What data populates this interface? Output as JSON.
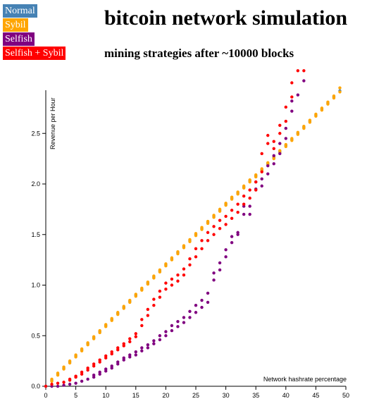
{
  "legend": [
    {
      "label": "Normal",
      "color": "#4682b4"
    },
    {
      "label": "Sybil",
      "color": "#ffa500"
    },
    {
      "label": "Selfish",
      "color": "#800080"
    },
    {
      "label": "Selfish + Sybil",
      "color": "#ff0000"
    }
  ],
  "title": "bitcoin network simulation",
  "subtitle": "mining strategies after ~10000 blocks",
  "chart_data": {
    "type": "scatter",
    "title": "bitcoin network simulation",
    "subtitle": "mining strategies after ~10000 blocks",
    "xlabel": "Network hashrate percentage",
    "ylabel": "Revenue per Hour",
    "xlim": [
      0,
      50
    ],
    "ylim": [
      0,
      3.0
    ],
    "xticks": [
      0,
      5,
      10,
      15,
      20,
      25,
      30,
      35,
      40,
      45,
      50
    ],
    "yticks": [
      0.0,
      0.5,
      1.0,
      1.5,
      2.0,
      2.5
    ],
    "ytick_labels": [
      "0.0",
      "0.5",
      "1.0",
      "1.5",
      "2.0",
      "2.5"
    ],
    "grid": false,
    "legend_position": "top-left",
    "series": [
      {
        "name": "Normal",
        "color": "#4682b4",
        "points": [
          [
            1,
            0.06
          ],
          [
            2,
            0.12
          ],
          [
            3,
            0.18
          ],
          [
            4,
            0.24
          ],
          [
            5,
            0.3
          ],
          [
            6,
            0.36
          ],
          [
            7,
            0.42
          ],
          [
            8,
            0.48
          ],
          [
            9,
            0.54
          ],
          [
            10,
            0.6
          ],
          [
            11,
            0.66
          ],
          [
            12,
            0.72
          ],
          [
            13,
            0.78
          ],
          [
            14,
            0.84
          ],
          [
            15,
            0.9
          ],
          [
            16,
            0.96
          ],
          [
            17,
            1.02
          ],
          [
            18,
            1.08
          ],
          [
            19,
            1.14
          ],
          [
            20,
            1.2
          ],
          [
            21,
            1.26
          ],
          [
            22,
            1.32
          ],
          [
            23,
            1.38
          ],
          [
            24,
            1.44
          ],
          [
            25,
            1.5
          ],
          [
            26,
            1.56
          ],
          [
            27,
            1.62
          ],
          [
            28,
            1.68
          ],
          [
            29,
            1.74
          ],
          [
            30,
            1.8
          ],
          [
            31,
            1.86
          ],
          [
            32,
            1.91
          ],
          [
            33,
            1.97
          ],
          [
            34,
            2.03
          ],
          [
            35,
            2.08
          ],
          [
            36,
            2.14
          ],
          [
            37,
            2.2
          ],
          [
            38,
            2.26
          ],
          [
            39,
            2.32
          ],
          [
            40,
            2.38
          ],
          [
            41,
            2.44
          ],
          [
            42,
            2.5
          ],
          [
            43,
            2.56
          ],
          [
            44,
            2.62
          ],
          [
            45,
            2.68
          ],
          [
            46,
            2.74
          ],
          [
            47,
            2.8
          ],
          [
            48,
            2.86
          ],
          [
            49,
            2.92
          ]
        ]
      },
      {
        "name": "Sybil",
        "color": "#ffa500",
        "points": [
          [
            1,
            0.05
          ],
          [
            1,
            0.07
          ],
          [
            2,
            0.11
          ],
          [
            2,
            0.13
          ],
          [
            3,
            0.17
          ],
          [
            3,
            0.19
          ],
          [
            4,
            0.23
          ],
          [
            4,
            0.25
          ],
          [
            5,
            0.29
          ],
          [
            5,
            0.31
          ],
          [
            6,
            0.35
          ],
          [
            6,
            0.37
          ],
          [
            7,
            0.41
          ],
          [
            7,
            0.43
          ],
          [
            8,
            0.47
          ],
          [
            8,
            0.49
          ],
          [
            9,
            0.53
          ],
          [
            9,
            0.55
          ],
          [
            10,
            0.59
          ],
          [
            10,
            0.61
          ],
          [
            11,
            0.65
          ],
          [
            11,
            0.67
          ],
          [
            12,
            0.71
          ],
          [
            12,
            0.73
          ],
          [
            13,
            0.77
          ],
          [
            13,
            0.79
          ],
          [
            14,
            0.83
          ],
          [
            14,
            0.85
          ],
          [
            15,
            0.89
          ],
          [
            15,
            0.91
          ],
          [
            16,
            0.95
          ],
          [
            16,
            0.97
          ],
          [
            17,
            1.01
          ],
          [
            17,
            1.03
          ],
          [
            18,
            1.07
          ],
          [
            18,
            1.09
          ],
          [
            19,
            1.13
          ],
          [
            19,
            1.15
          ],
          [
            20,
            1.19
          ],
          [
            20,
            1.21
          ],
          [
            21,
            1.25
          ],
          [
            21,
            1.27
          ],
          [
            22,
            1.31
          ],
          [
            22,
            1.33
          ],
          [
            23,
            1.37
          ],
          [
            23,
            1.39
          ],
          [
            24,
            1.43
          ],
          [
            24,
            1.45
          ],
          [
            25,
            1.49
          ],
          [
            25,
            1.51
          ],
          [
            26,
            1.55
          ],
          [
            26,
            1.57
          ],
          [
            27,
            1.61
          ],
          [
            27,
            1.63
          ],
          [
            28,
            1.67
          ],
          [
            28,
            1.69
          ],
          [
            29,
            1.73
          ],
          [
            29,
            1.75
          ],
          [
            30,
            1.79
          ],
          [
            30,
            1.81
          ],
          [
            31,
            1.85
          ],
          [
            31,
            1.87
          ],
          [
            32,
            1.9
          ],
          [
            32,
            1.92
          ],
          [
            33,
            1.96
          ],
          [
            33,
            1.98
          ],
          [
            34,
            2.02
          ],
          [
            34,
            2.04
          ],
          [
            35,
            2.07
          ],
          [
            35,
            2.09
          ],
          [
            36,
            2.13
          ],
          [
            36,
            2.15
          ],
          [
            37,
            2.19
          ],
          [
            37,
            2.21
          ],
          [
            38,
            2.25
          ],
          [
            38,
            2.27
          ],
          [
            39,
            2.31
          ],
          [
            39,
            2.33
          ],
          [
            40,
            2.37
          ],
          [
            40,
            2.39
          ],
          [
            41,
            2.43
          ],
          [
            41,
            2.45
          ],
          [
            42,
            2.49
          ],
          [
            42,
            2.51
          ],
          [
            43,
            2.55
          ],
          [
            43,
            2.57
          ],
          [
            44,
            2.61
          ],
          [
            44,
            2.63
          ],
          [
            45,
            2.67
          ],
          [
            45,
            2.69
          ],
          [
            46,
            2.73
          ],
          [
            46,
            2.75
          ],
          [
            47,
            2.79
          ],
          [
            47,
            2.81
          ],
          [
            48,
            2.85
          ],
          [
            48,
            2.87
          ],
          [
            49,
            2.91
          ],
          [
            49,
            2.95
          ]
        ]
      },
      {
        "name": "Selfish",
        "color": "#800080",
        "points": [
          [
            0,
            0.0
          ],
          [
            1,
            0.0
          ],
          [
            2,
            0.0
          ],
          [
            3,
            0.01
          ],
          [
            4,
            0.02
          ],
          [
            5,
            0.03
          ],
          [
            6,
            0.05
          ],
          [
            7,
            0.07
          ],
          [
            8,
            0.09
          ],
          [
            8,
            0.11
          ],
          [
            9,
            0.12
          ],
          [
            9,
            0.14
          ],
          [
            10,
            0.15
          ],
          [
            10,
            0.17
          ],
          [
            11,
            0.18
          ],
          [
            11,
            0.2
          ],
          [
            12,
            0.22
          ],
          [
            12,
            0.24
          ],
          [
            13,
            0.26
          ],
          [
            13,
            0.28
          ],
          [
            14,
            0.29
          ],
          [
            14,
            0.31
          ],
          [
            15,
            0.31
          ],
          [
            15,
            0.34
          ],
          [
            16,
            0.35
          ],
          [
            16,
            0.38
          ],
          [
            17,
            0.38
          ],
          [
            17,
            0.41
          ],
          [
            18,
            0.42
          ],
          [
            18,
            0.45
          ],
          [
            19,
            0.46
          ],
          [
            19,
            0.5
          ],
          [
            20,
            0.5
          ],
          [
            20,
            0.54
          ],
          [
            21,
            0.55
          ],
          [
            21,
            0.6
          ],
          [
            22,
            0.59
          ],
          [
            22,
            0.64
          ],
          [
            23,
            0.63
          ],
          [
            23,
            0.68
          ],
          [
            24,
            0.68
          ],
          [
            24,
            0.74
          ],
          [
            25,
            0.73
          ],
          [
            25,
            0.8
          ],
          [
            26,
            0.78
          ],
          [
            26,
            0.85
          ],
          [
            27,
            0.83
          ],
          [
            27,
            0.92
          ],
          [
            28,
            1.05
          ],
          [
            28,
            1.12
          ],
          [
            29,
            1.15
          ],
          [
            29,
            1.22
          ],
          [
            30,
            1.28
          ],
          [
            30,
            1.35
          ],
          [
            31,
            1.42
          ],
          [
            31,
            1.48
          ],
          [
            32,
            1.5
          ],
          [
            32,
            1.52
          ],
          [
            33,
            1.7
          ],
          [
            33,
            1.78
          ],
          [
            34,
            1.7
          ],
          [
            34,
            1.78
          ],
          [
            35,
            1.95
          ],
          [
            35,
            2.02
          ],
          [
            36,
            1.98
          ],
          [
            36,
            2.05
          ],
          [
            37,
            2.1
          ],
          [
            37,
            2.18
          ],
          [
            38,
            2.2
          ],
          [
            38,
            2.28
          ],
          [
            39,
            2.3
          ],
          [
            39,
            2.4
          ],
          [
            40,
            2.45
          ],
          [
            40,
            2.55
          ],
          [
            41,
            2.72
          ],
          [
            41,
            2.82
          ],
          [
            42,
            2.88
          ],
          [
            43,
            3.02
          ]
        ]
      },
      {
        "name": "Selfish + Sybil",
        "color": "#ff0000",
        "points": [
          [
            0,
            0.0
          ],
          [
            1,
            0.02
          ],
          [
            2,
            0.03
          ],
          [
            3,
            0.04
          ],
          [
            4,
            0.06
          ],
          [
            4,
            0.07
          ],
          [
            5,
            0.09
          ],
          [
            5,
            0.1
          ],
          [
            6,
            0.12
          ],
          [
            6,
            0.14
          ],
          [
            7,
            0.16
          ],
          [
            7,
            0.18
          ],
          [
            8,
            0.2
          ],
          [
            8,
            0.22
          ],
          [
            9,
            0.24
          ],
          [
            9,
            0.26
          ],
          [
            10,
            0.28
          ],
          [
            10,
            0.3
          ],
          [
            11,
            0.32
          ],
          [
            11,
            0.34
          ],
          [
            12,
            0.36
          ],
          [
            12,
            0.38
          ],
          [
            13,
            0.4
          ],
          [
            13,
            0.42
          ],
          [
            14,
            0.44
          ],
          [
            14,
            0.47
          ],
          [
            15,
            0.49
          ],
          [
            15,
            0.52
          ],
          [
            16,
            0.6
          ],
          [
            16,
            0.66
          ],
          [
            17,
            0.7
          ],
          [
            17,
            0.76
          ],
          [
            18,
            0.8
          ],
          [
            18,
            0.86
          ],
          [
            19,
            0.88
          ],
          [
            19,
            0.94
          ],
          [
            20,
            0.96
          ],
          [
            20,
            1.02
          ],
          [
            21,
            1.0
          ],
          [
            21,
            1.06
          ],
          [
            22,
            1.04
          ],
          [
            22,
            1.1
          ],
          [
            23,
            1.1
          ],
          [
            23,
            1.16
          ],
          [
            24,
            1.2
          ],
          [
            24,
            1.26
          ],
          [
            25,
            1.28
          ],
          [
            25,
            1.36
          ],
          [
            26,
            1.36
          ],
          [
            26,
            1.44
          ],
          [
            27,
            1.44
          ],
          [
            27,
            1.52
          ],
          [
            28,
            1.5
          ],
          [
            28,
            1.58
          ],
          [
            29,
            1.56
          ],
          [
            29,
            1.64
          ],
          [
            30,
            1.6
          ],
          [
            30,
            1.68
          ],
          [
            31,
            1.66
          ],
          [
            31,
            1.74
          ],
          [
            32,
            1.72
          ],
          [
            32,
            1.8
          ],
          [
            33,
            1.8
          ],
          [
            33,
            1.88
          ],
          [
            34,
            1.86
          ],
          [
            34,
            1.94
          ],
          [
            35,
            1.94
          ],
          [
            35,
            2.02
          ],
          [
            36,
            2.12
          ],
          [
            36,
            2.3
          ],
          [
            37,
            2.4
          ],
          [
            37,
            2.48
          ],
          [
            38,
            2.35
          ],
          [
            38,
            2.42
          ],
          [
            39,
            2.5
          ],
          [
            39,
            2.58
          ],
          [
            40,
            2.62
          ],
          [
            40,
            2.76
          ],
          [
            41,
            2.86
          ],
          [
            41,
            3.0
          ],
          [
            42,
            3.12
          ],
          [
            43,
            3.12
          ]
        ]
      }
    ]
  }
}
